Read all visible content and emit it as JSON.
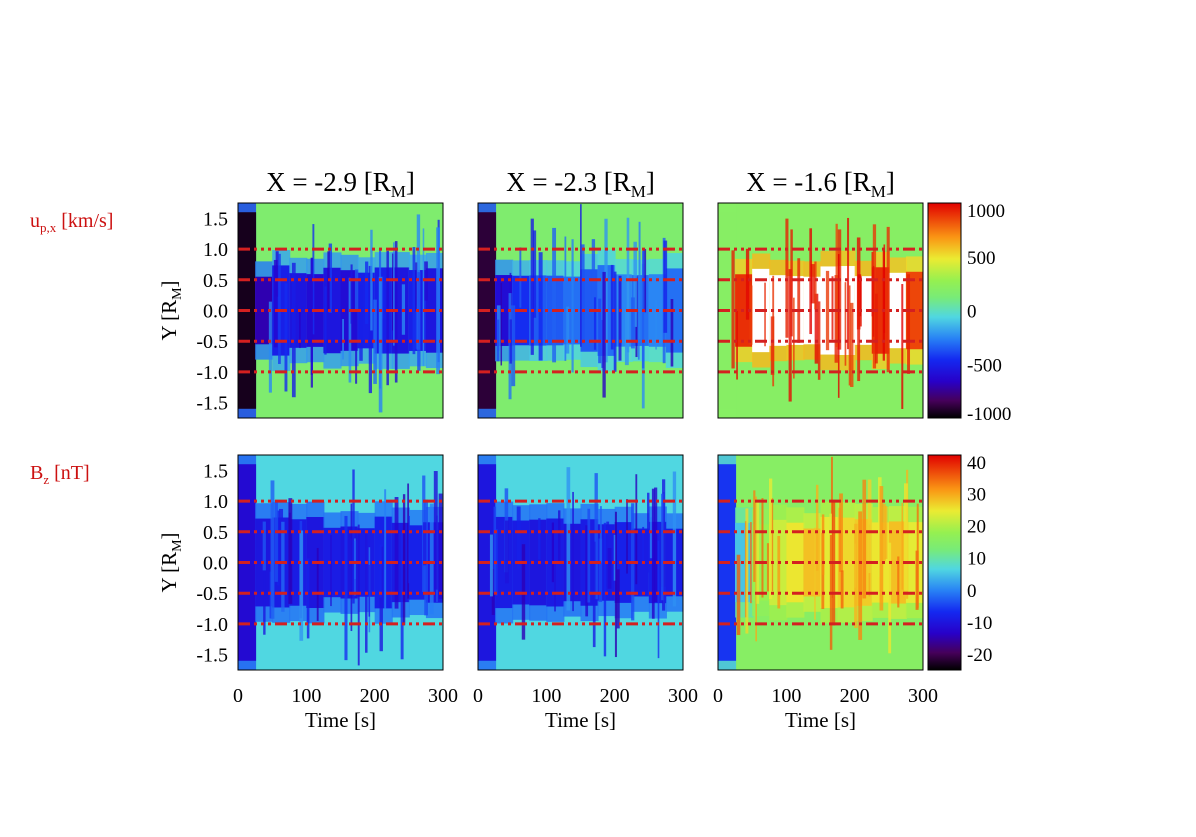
{
  "chart_data": {
    "type": "heatmap",
    "layout": "2 rows x 3 columns of time–Y maps",
    "column_titles": [
      {
        "main": "X = -2.9 [R",
        "sub": "M",
        "end": "]"
      },
      {
        "main": "X = -2.3 [R",
        "sub": "M",
        "end": "]"
      },
      {
        "main": "X = -1.6 [R",
        "sub": "M",
        "end": "]"
      }
    ],
    "rows": [
      {
        "quantity": {
          "main": "u",
          "sub": "p,x",
          "end": " [km/s]"
        },
        "colorbar": {
          "range": [
            -1000,
            1000
          ],
          "ticks": [
            "1000",
            "500",
            "0",
            "-500",
            "-1000"
          ],
          "tick_values": [
            1000,
            500,
            0,
            -500,
            -1000
          ]
        },
        "panels": [
          {
            "description_hidden": true,
            "intensity": [
              -0.95,
              -0.7,
              -0.5,
              -0.55,
              -0.6,
              -0.55,
              -0.6,
              -0.5,
              -0.5,
              -0.55,
              -0.5,
              -0.55
            ]
          },
          {
            "description_hidden": true,
            "intensity": [
              -0.9,
              -0.6,
              -0.45,
              -0.35,
              -0.35,
              -0.3,
              -0.35,
              -0.3,
              -0.25,
              -0.3,
              -0.25,
              -0.3
            ]
          },
          {
            "description_hidden": true,
            "intensity": [
              0.2,
              0.9,
              1.0,
              1.0,
              0.95,
              1.0,
              1.0,
              0.95,
              1.0,
              0.9,
              0.95,
              0.85
            ]
          }
        ]
      },
      {
        "quantity": {
          "main": "B",
          "sub": "z",
          "end": " [nT]"
        },
        "colorbar": {
          "range": [
            -25,
            42
          ],
          "ticks": [
            "40",
            "30",
            "20",
            "10",
            "0",
            "-10",
            "-20"
          ],
          "tick_values": [
            40,
            30,
            20,
            10,
            0,
            -10,
            -20
          ]
        },
        "panels": [
          {
            "description_hidden": true,
            "intensity": [
              -12,
              -10,
              -9,
              -9,
              -10,
              -9,
              -10,
              -9,
              -8,
              -9,
              -8,
              -9
            ]
          },
          {
            "description_hidden": true,
            "intensity": [
              -10,
              -9,
              -9,
              -10,
              -9,
              -10,
              -9,
              -9,
              -8,
              -9,
              -8,
              -9
            ]
          },
          {
            "description_hidden": true,
            "intensity": [
              -6,
              5,
              18,
              22,
              25,
              28,
              24,
              26,
              27,
              25,
              28,
              24
            ]
          }
        ]
      }
    ],
    "x_axis": {
      "label": "Time [s]",
      "range": [
        0,
        300
      ],
      "ticks": [
        0,
        100,
        200,
        300
      ],
      "tick_labels": [
        "0",
        "100",
        "200",
        "300"
      ]
    },
    "y_axis": {
      "label": {
        "main": "Y [R",
        "sub": "M",
        "end": "]"
      },
      "range": [
        -1.75,
        1.75
      ],
      "ticks": [
        1.5,
        1.0,
        0.5,
        0.0,
        -0.5,
        -1.0,
        -1.5
      ],
      "tick_labels": [
        "1.5",
        "1.0",
        "0.5",
        "0.0",
        "-0.5",
        "-1.0",
        "-1.5"
      ]
    },
    "reference_lines_y": [
      1.0,
      0.5,
      0.0,
      -0.5,
      -1.0
    ],
    "reference_line_color": "#d42020",
    "colormap": "rainbow (black-purple-blue-cyan-green-yellow-orange-red)",
    "saturated_color": "#ffffff"
  }
}
